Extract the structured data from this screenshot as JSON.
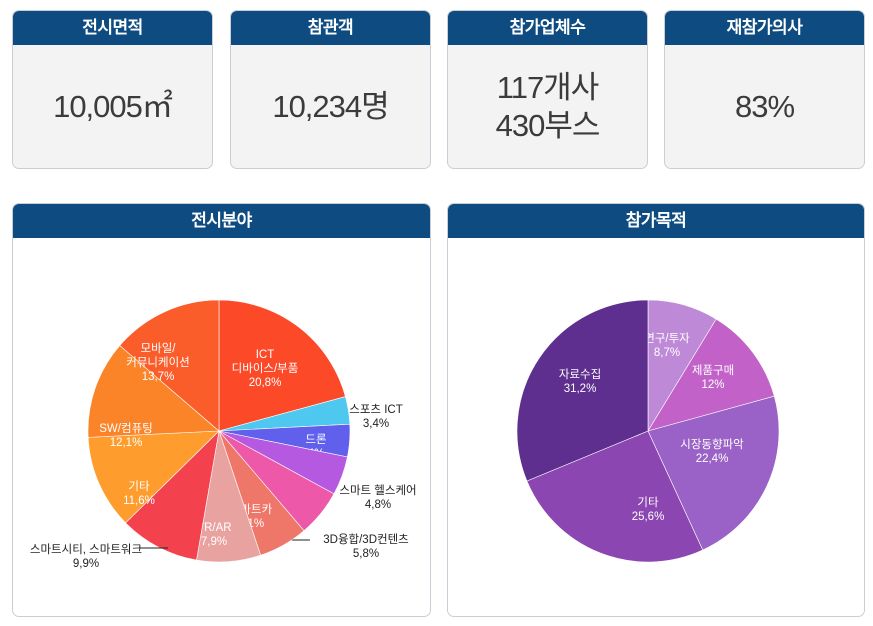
{
  "stats": [
    {
      "title": "전시면적",
      "value": "10,005㎡"
    },
    {
      "title": "참관객",
      "value": "10,234명"
    },
    {
      "title": "참가업체수",
      "value_line1": "117개사",
      "value_line2": "430부스"
    },
    {
      "title": "재참가의사",
      "value": "83%"
    }
  ],
  "chart_data": [
    {
      "type": "pie",
      "title": "전시분야",
      "slices": [
        {
          "label": "ICT 디바이스/부품",
          "value": 20.8,
          "display": "20,8%",
          "color": "#fc4a29"
        },
        {
          "label": "스포츠 ICT",
          "value": 3.4,
          "display": "3,4%",
          "color": "#4ec8ef"
        },
        {
          "label": "드론",
          "value": 4,
          "display": "4%",
          "color": "#6060ec"
        },
        {
          "label": "스마트 헬스케어",
          "value": 4.8,
          "display": "4,8%",
          "color": "#b55ae0"
        },
        {
          "label": "3D융합/3D컨텐츠",
          "value": 5.8,
          "display": "5,8%",
          "color": "#ee58a8"
        },
        {
          "label": "스마트카",
          "value": 6.1,
          "display": "6,1%",
          "color": "#ef776a"
        },
        {
          "label": "VR/AR",
          "value": 7.9,
          "display": "7,9%",
          "color": "#e8a3a0"
        },
        {
          "label": "스마트시티, 스마트워크",
          "value": 9.9,
          "display": "9,9%",
          "color": "#f3414d"
        },
        {
          "label": "기타",
          "value": 11.6,
          "display": "11,6%",
          "color": "#fe9c2e"
        },
        {
          "label": "SW/컴퓨팅",
          "value": 12.1,
          "display": "12,1%",
          "color": "#fc8428"
        },
        {
          "label": "모바일/ 커뮤니케이션",
          "value": 13.7,
          "display": "13,7%",
          "color": "#fb5d2a"
        }
      ]
    },
    {
      "type": "pie",
      "title": "참가목적",
      "slices": [
        {
          "label": "연구/투자",
          "value": 8.7,
          "display": "8,7%",
          "color": "#be8ad7"
        },
        {
          "label": "제품구매",
          "value": 12,
          "display": "12%",
          "color": "#c262c8"
        },
        {
          "label": "시장동향파악",
          "value": 22.4,
          "display": "22,4%",
          "color": "#9a62c6"
        },
        {
          "label": "기타",
          "value": 25.6,
          "display": "25,6%",
          "color": "#8c46b1"
        },
        {
          "label": "자료수집",
          "value": 31.2,
          "display": "31,2%",
          "color": "#5e2f8e"
        }
      ]
    }
  ]
}
